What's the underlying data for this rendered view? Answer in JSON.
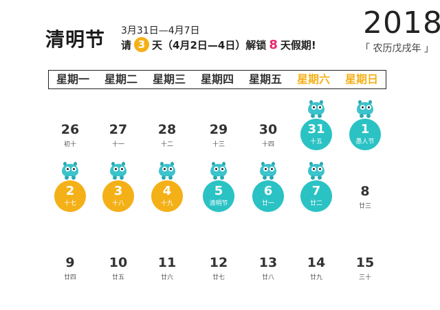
{
  "header": {
    "title": "清明节",
    "date_range": "3月31日—4月7日",
    "sub_prefix": "请",
    "sub_days": "3",
    "sub_mid": "天（4月2日—4日）解锁",
    "sub_unlock": "8",
    "sub_suffix": "天假期!",
    "year": "2018",
    "lunar_year": "「 农历戊戌年 」"
  },
  "colors": {
    "teal": "#2bc2c4",
    "yellow": "#f4b017",
    "pink": "#e6266c"
  },
  "weekdays": [
    "星期一",
    "星期二",
    "星期三",
    "星期四",
    "星期五",
    "星期六",
    "星期日"
  ],
  "weeks": [
    [
      {
        "day": "26",
        "lunar": "初十",
        "mark": "none"
      },
      {
        "day": "27",
        "lunar": "十一",
        "mark": "none"
      },
      {
        "day": "28",
        "lunar": "十二",
        "mark": "none"
      },
      {
        "day": "29",
        "lunar": "十三",
        "mark": "none"
      },
      {
        "day": "30",
        "lunar": "十四",
        "mark": "none"
      },
      {
        "day": "31",
        "lunar": "十五",
        "mark": "teal"
      },
      {
        "day": "1",
        "lunar": "愚人节",
        "mark": "teal"
      }
    ],
    [
      {
        "day": "2",
        "lunar": "十七",
        "mark": "yellow"
      },
      {
        "day": "3",
        "lunar": "十八",
        "mark": "yellow"
      },
      {
        "day": "4",
        "lunar": "十九",
        "mark": "yellow"
      },
      {
        "day": "5",
        "lunar": "清明节",
        "mark": "teal"
      },
      {
        "day": "6",
        "lunar": "廿一",
        "mark": "teal"
      },
      {
        "day": "7",
        "lunar": "廿二",
        "mark": "teal"
      },
      {
        "day": "8",
        "lunar": "廿三",
        "mark": "none"
      }
    ],
    [
      {
        "day": "9",
        "lunar": "廿四",
        "mark": "none"
      },
      {
        "day": "10",
        "lunar": "廿五",
        "mark": "none"
      },
      {
        "day": "11",
        "lunar": "廿六",
        "mark": "none"
      },
      {
        "day": "12",
        "lunar": "廿七",
        "mark": "none"
      },
      {
        "day": "13",
        "lunar": "廿八",
        "mark": "none"
      },
      {
        "day": "14",
        "lunar": "廿九",
        "mark": "none"
      },
      {
        "day": "15",
        "lunar": "三十",
        "mark": "none"
      }
    ]
  ]
}
